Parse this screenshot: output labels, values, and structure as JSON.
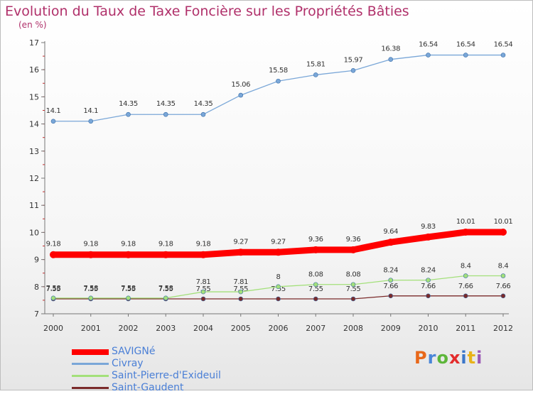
{
  "title": "Evolution du Taux de Taxe Foncière sur les Propriétés Bâties",
  "subtitle": "(en %)",
  "logo_text": "Proxiti",
  "logo_colors": [
    "#e8681a",
    "#4a86d8",
    "#5db63a",
    "#e32c2c",
    "#3b76c9",
    "#e8b31a",
    "#9b59b6"
  ],
  "chart_data": {
    "type": "line",
    "x": [
      "2000",
      "2001",
      "2002",
      "2003",
      "2004",
      "2005",
      "2006",
      "2007",
      "2008",
      "2009",
      "2010",
      "2011",
      "2012"
    ],
    "ylim": [
      7,
      17
    ],
    "yticks": [
      "7",
      "8",
      "9",
      "10",
      "11",
      "12",
      "13",
      "14",
      "15",
      "16",
      "17"
    ],
    "grid": false,
    "legend_position": "bottom-left",
    "series": [
      {
        "name": "SAVIGNé",
        "color": "#ff0000",
        "values": [
          9.18,
          9.18,
          9.18,
          9.18,
          9.18,
          9.27,
          9.27,
          9.36,
          9.36,
          9.64,
          9.83,
          10.01,
          10.01
        ],
        "labels": [
          "9.18",
          "9.18",
          "9.18",
          "9.18",
          "9.18",
          "9.27",
          "9.27",
          "9.36",
          "9.36",
          "9.64",
          "9.83",
          "10.01",
          "10.01"
        ]
      },
      {
        "name": "Civray",
        "color": "#7aa7d8",
        "values": [
          14.1,
          14.1,
          14.35,
          14.35,
          14.35,
          15.06,
          15.58,
          15.81,
          15.97,
          16.38,
          16.54,
          16.54,
          16.54
        ],
        "labels": [
          "14.1",
          "14.1",
          "14.35",
          "14.35",
          "14.35",
          "15.06",
          "15.58",
          "15.81",
          "15.97",
          "16.38",
          "16.54",
          "16.54",
          "16.54"
        ]
      },
      {
        "name": "Saint-Pierre-d'Exideuil",
        "color": "#a3e07a",
        "values": [
          7.58,
          7.58,
          7.58,
          7.58,
          7.81,
          7.81,
          8,
          8.08,
          8.08,
          8.24,
          8.24,
          8.4,
          8.4
        ],
        "labels": [
          "7.58",
          "7.58",
          "7.58",
          "7.58",
          "7.81",
          "7.81",
          "8",
          "8.08",
          "8.08",
          "8.24",
          "8.24",
          "8.4",
          "8.4"
        ]
      },
      {
        "name": "Saint-Gaudent",
        "color": "#7a2a2a",
        "values": [
          7.55,
          7.55,
          7.55,
          7.55,
          7.55,
          7.55,
          7.55,
          7.55,
          7.55,
          7.66,
          7.66,
          7.66,
          7.66
        ],
        "labels": [
          "7.55",
          "7.55",
          "7.55",
          "7.55",
          "7.55",
          "7.55",
          "7.55",
          "7.55",
          "7.55",
          "7.66",
          "7.66",
          "7.66",
          "7.66"
        ]
      }
    ]
  }
}
